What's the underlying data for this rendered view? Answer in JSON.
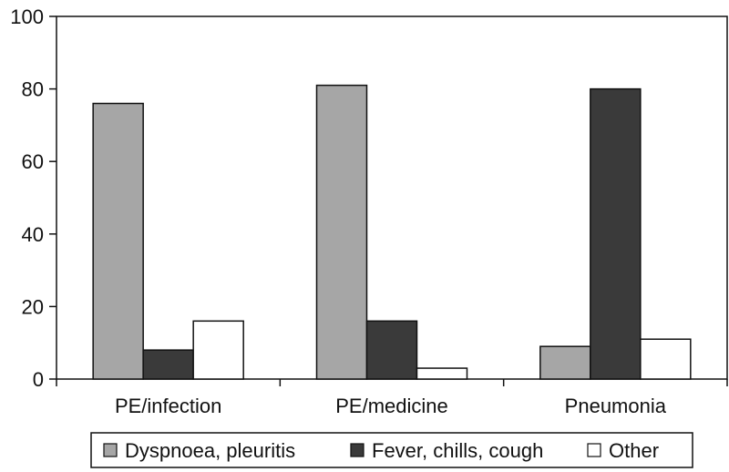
{
  "chart_data": {
    "type": "bar",
    "title": "",
    "xlabel": "",
    "ylabel": "",
    "ylim": [
      0,
      100
    ],
    "yticks": [
      0,
      20,
      40,
      60,
      80,
      100
    ],
    "categories": [
      "PE/infection",
      "PE/medicine",
      "Pneumonia"
    ],
    "series": [
      {
        "name": "Dyspnoea, pleuritis",
        "color": "#a6a6a6",
        "values": [
          76,
          81,
          9
        ]
      },
      {
        "name": "Fever, chills, cough",
        "color": "#3a3a3a",
        "values": [
          8,
          16,
          80
        ]
      },
      {
        "name": "Other",
        "color": "#ffffff",
        "values": [
          16,
          3,
          11
        ]
      }
    ],
    "grid": false,
    "legend_position": "bottom"
  }
}
